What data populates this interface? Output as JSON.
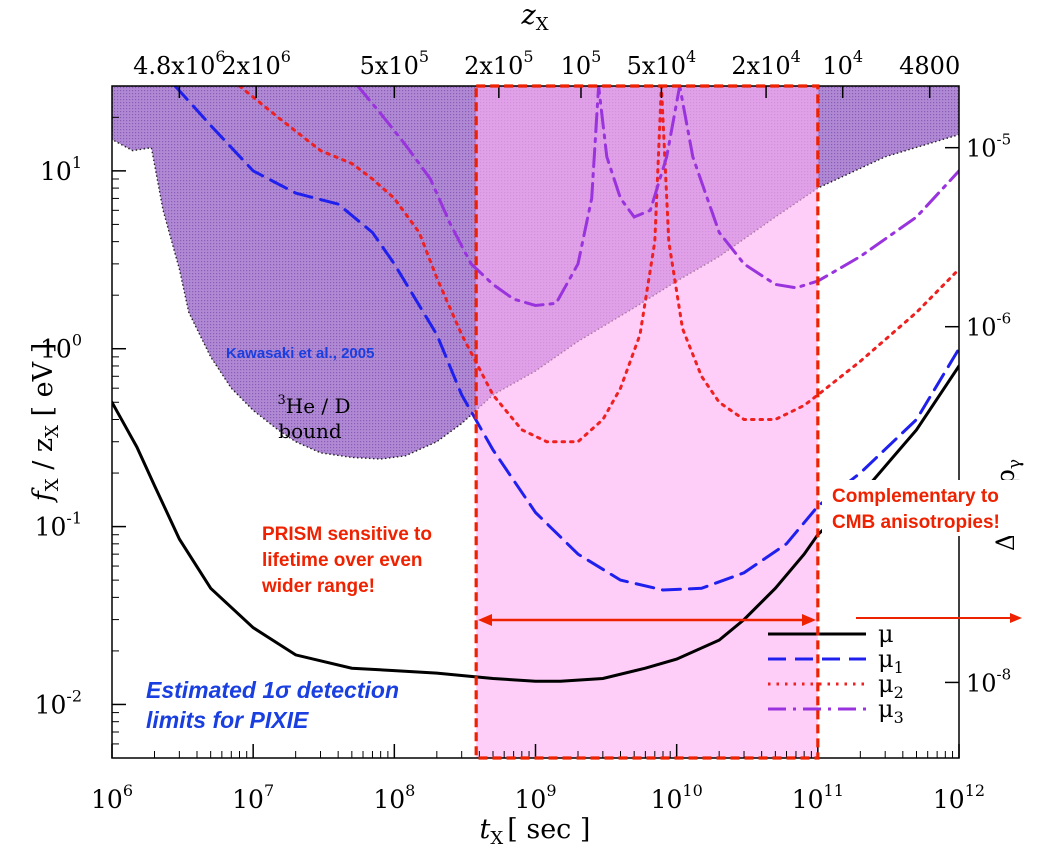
{
  "chart_data": {
    "type": "line",
    "x_scale": "log",
    "y_scale": "log",
    "xlim": [
      1000000.0,
      1000000000000.0
    ],
    "ylim": [
      0.005,
      30
    ],
    "x_axis": {
      "label_main": "t",
      "label_sub": "X",
      "label_unit": "[ sec ]",
      "ticks": [
        {
          "value": 1000000.0,
          "base": "10",
          "exp": "6"
        },
        {
          "value": 10000000.0,
          "base": "10",
          "exp": "7"
        },
        {
          "value": 100000000.0,
          "base": "10",
          "exp": "8"
        },
        {
          "value": 1000000000.0,
          "base": "10",
          "exp": "9"
        },
        {
          "value": 10000000000.0,
          "base": "10",
          "exp": "10"
        },
        {
          "value": 100000000000.0,
          "base": "10",
          "exp": "11"
        },
        {
          "value": 1000000000000.0,
          "base": "10",
          "exp": "12"
        }
      ]
    },
    "y_axis": {
      "label_main": "f",
      "label_sub": "X",
      "label_mid": " / z",
      "label_sub2": "X",
      "label_unit": "  [ eV ]",
      "ticks": [
        {
          "value": 0.01,
          "base": "10",
          "exp": "-2"
        },
        {
          "value": 0.1,
          "base": "10",
          "exp": "-1"
        },
        {
          "value": 1,
          "base": "10",
          "exp": "0"
        },
        {
          "value": 10,
          "base": "10",
          "exp": "1"
        }
      ]
    },
    "top_axis": {
      "label_main": "z",
      "label_sub": "X",
      "ticks": [
        {
          "t": 3000000.0,
          "base": "4.8x10",
          "exp": "6"
        },
        {
          "t": 10500000.0,
          "base": "2x10",
          "exp": "6"
        },
        {
          "t": 100000000.0,
          "base": "5x10",
          "exp": "5"
        },
        {
          "t": 550000000.0,
          "base": "2x10",
          "exp": "5"
        },
        {
          "t": 2100000000.0,
          "base": "10",
          "exp": "5"
        },
        {
          "t": 7800000000.0,
          "base": "5x10",
          "exp": "4"
        },
        {
          "t": 43000000000.0,
          "base": "2x10",
          "exp": "4"
        },
        {
          "t": 150000000000.0,
          "base": "10",
          "exp": "4"
        },
        {
          "t": 620000000000.0,
          "base": "4800",
          "exp": ""
        }
      ]
    },
    "right_axis": {
      "label": "Δρ",
      "label_sub": "γ",
      "label_mid": " / ρ",
      "label_sub2": "γ",
      "ticks": [
        {
          "y": 13.5,
          "base": "10",
          "exp": "-5"
        },
        {
          "y": 1.33,
          "base": "10",
          "exp": "-6"
        },
        {
          "y": 0.0133,
          "base": "10",
          "exp": "-8"
        }
      ]
    },
    "series": [
      {
        "name": "μ",
        "sub": "",
        "color": "#000000",
        "dash": "solid",
        "points": [
          [
            1000000.0,
            0.5
          ],
          [
            1500000.0,
            0.28
          ],
          [
            2000000.0,
            0.17
          ],
          [
            3000000.0,
            0.085
          ],
          [
            5000000.0,
            0.045
          ],
          [
            10000000.0,
            0.027
          ],
          [
            20000000.0,
            0.019
          ],
          [
            50000000.0,
            0.016
          ],
          [
            100000000.0,
            0.0155
          ],
          [
            200000000.0,
            0.015
          ],
          [
            500000000.0,
            0.014
          ],
          [
            1000000000.0,
            0.0135
          ],
          [
            1500000000.0,
            0.0135
          ],
          [
            3000000000.0,
            0.014
          ],
          [
            6000000000.0,
            0.016
          ],
          [
            10000000000.0,
            0.018
          ],
          [
            20000000000.0,
            0.023
          ],
          [
            30000000000.0,
            0.03
          ],
          [
            50000000000.0,
            0.045
          ],
          [
            80000000000.0,
            0.07
          ],
          [
            100000000000.0,
            0.09
          ],
          [
            200000000000.0,
            0.15
          ],
          [
            500000000000.0,
            0.35
          ],
          [
            1000000000000.0,
            0.8
          ]
        ]
      },
      {
        "name": "μ",
        "sub": "1",
        "color": "#2020ee",
        "dash": "long",
        "points": [
          [
            2800000.0,
            30
          ],
          [
            5000000.0,
            18
          ],
          [
            10000000.0,
            10
          ],
          [
            20000000.0,
            7.5
          ],
          [
            40000000.0,
            6.5
          ],
          [
            70000000.0,
            4.5
          ],
          [
            100000000.0,
            3
          ],
          [
            200000000.0,
            1.2
          ],
          [
            300000000.0,
            0.55
          ],
          [
            500000000.0,
            0.27
          ],
          [
            1000000000.0,
            0.12
          ],
          [
            2000000000.0,
            0.07
          ],
          [
            4000000000.0,
            0.05
          ],
          [
            8000000000.0,
            0.044
          ],
          [
            15000000000.0,
            0.045
          ],
          [
            30000000000.0,
            0.055
          ],
          [
            60000000000.0,
            0.08
          ],
          [
            100000000000.0,
            0.13
          ],
          [
            200000000000.0,
            0.2
          ],
          [
            500000000000.0,
            0.4
          ],
          [
            1000000000000.0,
            1.0
          ]
        ]
      },
      {
        "name": "μ",
        "sub": "2",
        "color": "#ee2020",
        "dash": "dot",
        "points": [
          [
            8000000.0,
            30
          ],
          [
            15000000.0,
            20
          ],
          [
            30000000.0,
            13
          ],
          [
            50000000.0,
            11
          ],
          [
            70000000.0,
            9
          ],
          [
            100000000.0,
            7
          ],
          [
            150000000.0,
            4.5
          ],
          [
            200000000.0,
            2.5
          ],
          [
            300000000.0,
            1.2
          ],
          [
            500000000.0,
            0.55
          ],
          [
            800000000.0,
            0.35
          ],
          [
            1200000000.0,
            0.3
          ],
          [
            2000000000.0,
            0.3
          ],
          [
            3000000000.0,
            0.4
          ],
          [
            4000000000.0,
            0.6
          ],
          [
            5500000000.0,
            1.2
          ],
          [
            7000000000.0,
            4
          ],
          [
            7800000000.0,
            30
          ],
          [
            8800000000.0,
            4
          ],
          [
            11000000000.0,
            1.3
          ],
          [
            15000000000.0,
            0.7
          ],
          [
            20000000000.0,
            0.5
          ],
          [
            30000000000.0,
            0.4
          ],
          [
            50000000000.0,
            0.4
          ],
          [
            80000000000.0,
            0.48
          ],
          [
            100000000000.0,
            0.55
          ],
          [
            200000000000.0,
            0.85
          ],
          [
            500000000000.0,
            1.6
          ],
          [
            1000000000000.0,
            2.8
          ]
        ]
      },
      {
        "name": "μ",
        "sub": "3",
        "color": "#9933dd",
        "dash": "dashdot",
        "points": [
          [
            55000000.0,
            30
          ],
          [
            80000000.0,
            21
          ],
          [
            120000000.0,
            14
          ],
          [
            180000000.0,
            9
          ],
          [
            250000000.0,
            5
          ],
          [
            350000000.0,
            3
          ],
          [
            500000000.0,
            2.3
          ],
          [
            700000000.0,
            1.9
          ],
          [
            1000000000.0,
            1.75
          ],
          [
            1400000000.0,
            1.8
          ],
          [
            2000000000.0,
            3
          ],
          [
            2500000000.0,
            7
          ],
          [
            2800000000.0,
            30
          ],
          [
            3200000000.0,
            12
          ],
          [
            4000000000.0,
            7
          ],
          [
            5000000000.0,
            5.5
          ],
          [
            6500000000.0,
            6
          ],
          [
            8500000000.0,
            12
          ],
          [
            10500000000.0,
            30
          ],
          [
            13000000000.0,
            12
          ],
          [
            20000000000.0,
            4.5
          ],
          [
            30000000000.0,
            3
          ],
          [
            50000000000.0,
            2.3
          ],
          [
            70000000000.0,
            2.2
          ],
          [
            100000000000.0,
            2.4
          ],
          [
            200000000000.0,
            3.3
          ],
          [
            500000000000.0,
            5.5
          ],
          [
            1000000000000.0,
            10
          ]
        ]
      }
    ],
    "shaded_regions": [
      {
        "name": "He/D bound",
        "color": "#a070c8",
        "points": [
          [
            1000000.0,
            30
          ],
          [
            1000000.0,
            15
          ],
          [
            1400000.0,
            13
          ],
          [
            1900000.0,
            13.5
          ],
          [
            2300000.0,
            6
          ],
          [
            3000000.0,
            2.8
          ],
          [
            3500000.0,
            1.6
          ],
          [
            5000000.0,
            0.9
          ],
          [
            7000000.0,
            0.6
          ],
          [
            10000000.0,
            0.45
          ],
          [
            15000000.0,
            0.35
          ],
          [
            20000000.0,
            0.3
          ],
          [
            30000000.0,
            0.26
          ],
          [
            50000000.0,
            0.245
          ],
          [
            80000000.0,
            0.24
          ],
          [
            120000000.0,
            0.25
          ],
          [
            200000000.0,
            0.3
          ],
          [
            300000000.0,
            0.38
          ],
          [
            500000000.0,
            0.55
          ],
          [
            1000000000.0,
            0.75
          ],
          [
            2000000000.0,
            1.1
          ],
          [
            5000000000.0,
            1.7
          ],
          [
            10000000000.0,
            2.4
          ],
          [
            20000000000.0,
            3.3
          ],
          [
            50000000000.0,
            5.5
          ],
          [
            100000000000.0,
            8
          ],
          [
            300000000000.0,
            12
          ],
          [
            1000000000000.0,
            16
          ],
          [
            1000000000000.0,
            30
          ]
        ]
      },
      {
        "name": "PRISM range",
        "color": "#ffb0f4",
        "x": [
          380000000.0,
          100000000000.0
        ]
      }
    ],
    "annotations": {
      "kawasaki": "Kawasaki et al., 2005",
      "hed_sup": "3",
      "hed_text": "He / D",
      "hed_bound": "bound",
      "prism_line1": "PRISM sensitive to",
      "prism_line2": "lifetime over even",
      "prism_line3": "wider range!",
      "cmb_line1": "Complementary to",
      "cmb_line2": "CMB anisotropies!",
      "pixie_line1": "Estimated 1σ detection",
      "pixie_line2": "limits for PIXIE"
    },
    "colors": {
      "annotation_red": "#ee2200",
      "annotation_blue": "#1a3fe0"
    }
  }
}
